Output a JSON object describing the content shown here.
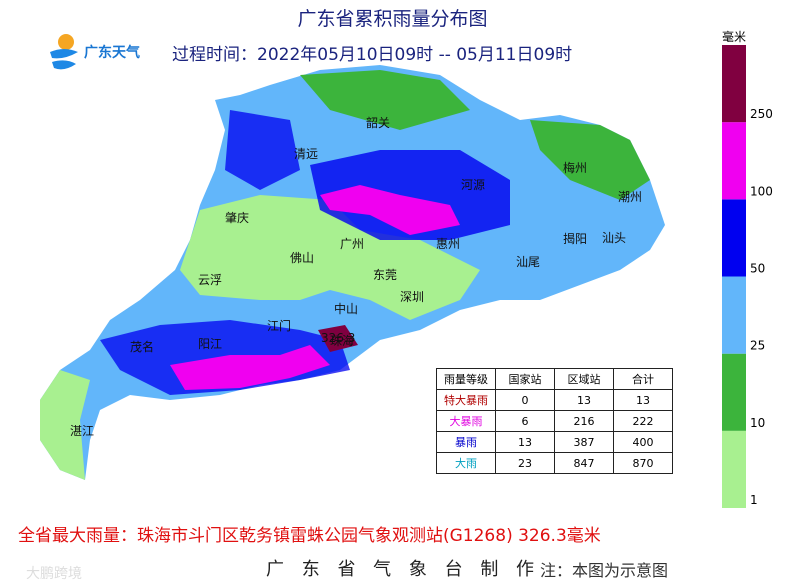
{
  "title": "广东省累积雨量分布图",
  "logo": "广东天气",
  "period": "过程时间：2022年05月10日09时 -- 05月11日09时",
  "cities": [
    "韶关",
    "清远",
    "河源",
    "梅州",
    "潮州",
    "肇庆",
    "广州",
    "惠州",
    "揭阳",
    "汕头",
    "佛山",
    "东莞",
    "汕尾",
    "云浮",
    "深圳",
    "中山",
    "江门",
    "珠海",
    "茂名",
    "阳江",
    "湛江"
  ],
  "max_marker": "326.3",
  "legend": {
    "unit": "毫米",
    "ticks": [
      1,
      10,
      25,
      50,
      100,
      250
    ],
    "colors": [
      "#a8f090",
      "#3cb43c",
      "#62b6fa",
      "#0000f0",
      "#f000f0",
      "#800040"
    ]
  },
  "table": {
    "header": [
      "雨量等级",
      "国家站",
      "区域站",
      "合计"
    ],
    "rows": [
      [
        "特大暴雨",
        0,
        13,
        13
      ],
      [
        "大暴雨",
        6,
        216,
        222
      ],
      [
        "暴雨",
        13,
        387,
        400
      ],
      [
        "大雨",
        23,
        847,
        870
      ]
    ]
  },
  "footer": {
    "max_rain": "全省最大雨量：珠海市斗门区乾务镇雷蛛公园气象观测站(G1268) 326.3毫米",
    "maker": "广 东 省 气 象 台 制 作",
    "note": "注：本图为示意图"
  },
  "watermark": "大鹏跨境"
}
